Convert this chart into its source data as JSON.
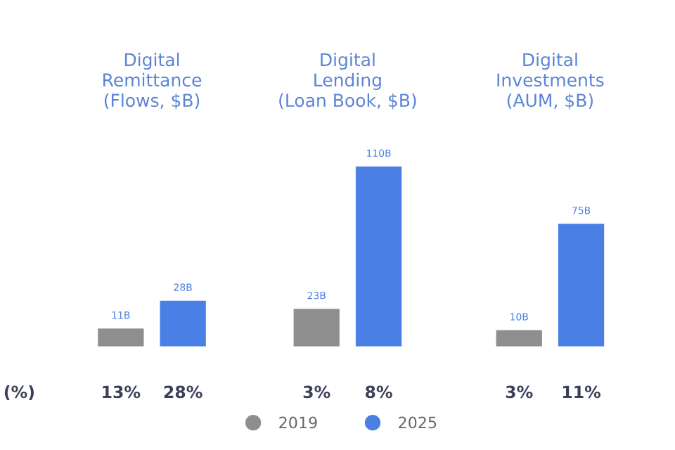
{
  "chart_data": [
    {
      "type": "bar",
      "title": "Digital\nRemittance\n(Flows, $B)",
      "categories": [
        null
      ],
      "tick_labels": false,
      "grid": false,
      "legend": "bottom",
      "series": [
        {
          "name": "2019",
          "color": "#8e8e8e",
          "values": [
            11
          ],
          "value_labels": [
            "11B"
          ]
        },
        {
          "name": "2025",
          "color": "#4a7fe6",
          "values": [
            28
          ],
          "value_labels": [
            "28B"
          ]
        }
      ],
      "annotations": [
        "(%)",
        "13%",
        "28%"
      ]
    },
    {
      "type": "bar",
      "title": "Digital\nLending\n(Loan Book, $B)",
      "categories": [
        null
      ],
      "tick_labels": false,
      "grid": false,
      "legend": "bottom",
      "series": [
        {
          "name": "2019",
          "color": "#8e8e8e",
          "values": [
            23
          ],
          "value_labels": [
            "23B"
          ]
        },
        {
          "name": "2025",
          "color": "#4a7fe6",
          "values": [
            110
          ],
          "value_labels": [
            "110B"
          ]
        }
      ],
      "annotations": [
        "3%",
        "8%"
      ]
    },
    {
      "type": "bar",
      "title": "Digital\nInvestments\n(AUM, $B)",
      "categories": [
        null
      ],
      "tick_labels": false,
      "grid": false,
      "legend": "bottom",
      "series": [
        {
          "name": "2019",
          "color": "#8e8e8e",
          "values": [
            10
          ],
          "value_labels": [
            "10B"
          ]
        },
        {
          "name": "2025",
          "color": "#4a7fe6",
          "values": [
            75
          ],
          "value_labels": [
            "75B"
          ]
        }
      ],
      "annotations": [
        "3%",
        "11%"
      ]
    }
  ]
}
